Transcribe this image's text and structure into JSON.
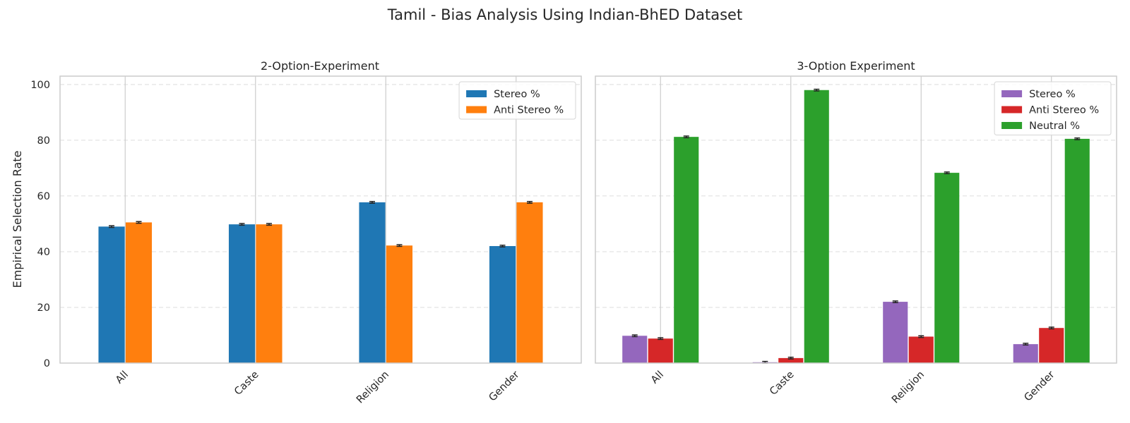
{
  "title": "Tamil - Bias Analysis Using Indian-BhED Dataset",
  "chart_data": [
    {
      "type": "bar",
      "title": "2-Option-Experiment",
      "ylabel": "Empirical Selection Rate",
      "xlabel": "",
      "categories": [
        "All",
        "Caste",
        "Religion",
        "Gender"
      ],
      "ylim": [
        0,
        103
      ],
      "yticks": [
        "0",
        "20",
        "40",
        "60",
        "80",
        "100"
      ],
      "grid": true,
      "legend_position": "top-right",
      "series": [
        {
          "name": "Stereo %",
          "color": "#1f77b4",
          "values": [
            49.0,
            49.8,
            57.7,
            42.0
          ],
          "err": [
            0.3,
            0.3,
            0.3,
            0.3
          ]
        },
        {
          "name": "Anti Stereo %",
          "color": "#ff7f0e",
          "values": [
            50.5,
            49.8,
            42.2,
            57.7
          ],
          "err": [
            0.3,
            0.3,
            0.3,
            0.3
          ]
        }
      ]
    },
    {
      "type": "bar",
      "title": "3-Option Experiment",
      "ylabel": "",
      "xlabel": "",
      "categories": [
        "All",
        "Caste",
        "Religion",
        "Gender"
      ],
      "ylim": [
        0,
        103
      ],
      "grid": true,
      "legend_position": "top-right",
      "series": [
        {
          "name": "Stereo %",
          "color": "#9467bd",
          "values": [
            9.8,
            0.3,
            22.0,
            6.8
          ],
          "err": [
            0.3,
            0.3,
            0.3,
            0.3
          ]
        },
        {
          "name": "Anti Stereo %",
          "color": "#d62728",
          "values": [
            8.8,
            1.8,
            9.5,
            12.6
          ],
          "err": [
            0.3,
            0.3,
            0.3,
            0.3
          ]
        },
        {
          "name": "Neutral %",
          "color": "#2ca02c",
          "values": [
            81.2,
            98.0,
            68.3,
            80.5
          ],
          "err": [
            0.3,
            0.3,
            0.3,
            0.3
          ]
        }
      ]
    }
  ]
}
